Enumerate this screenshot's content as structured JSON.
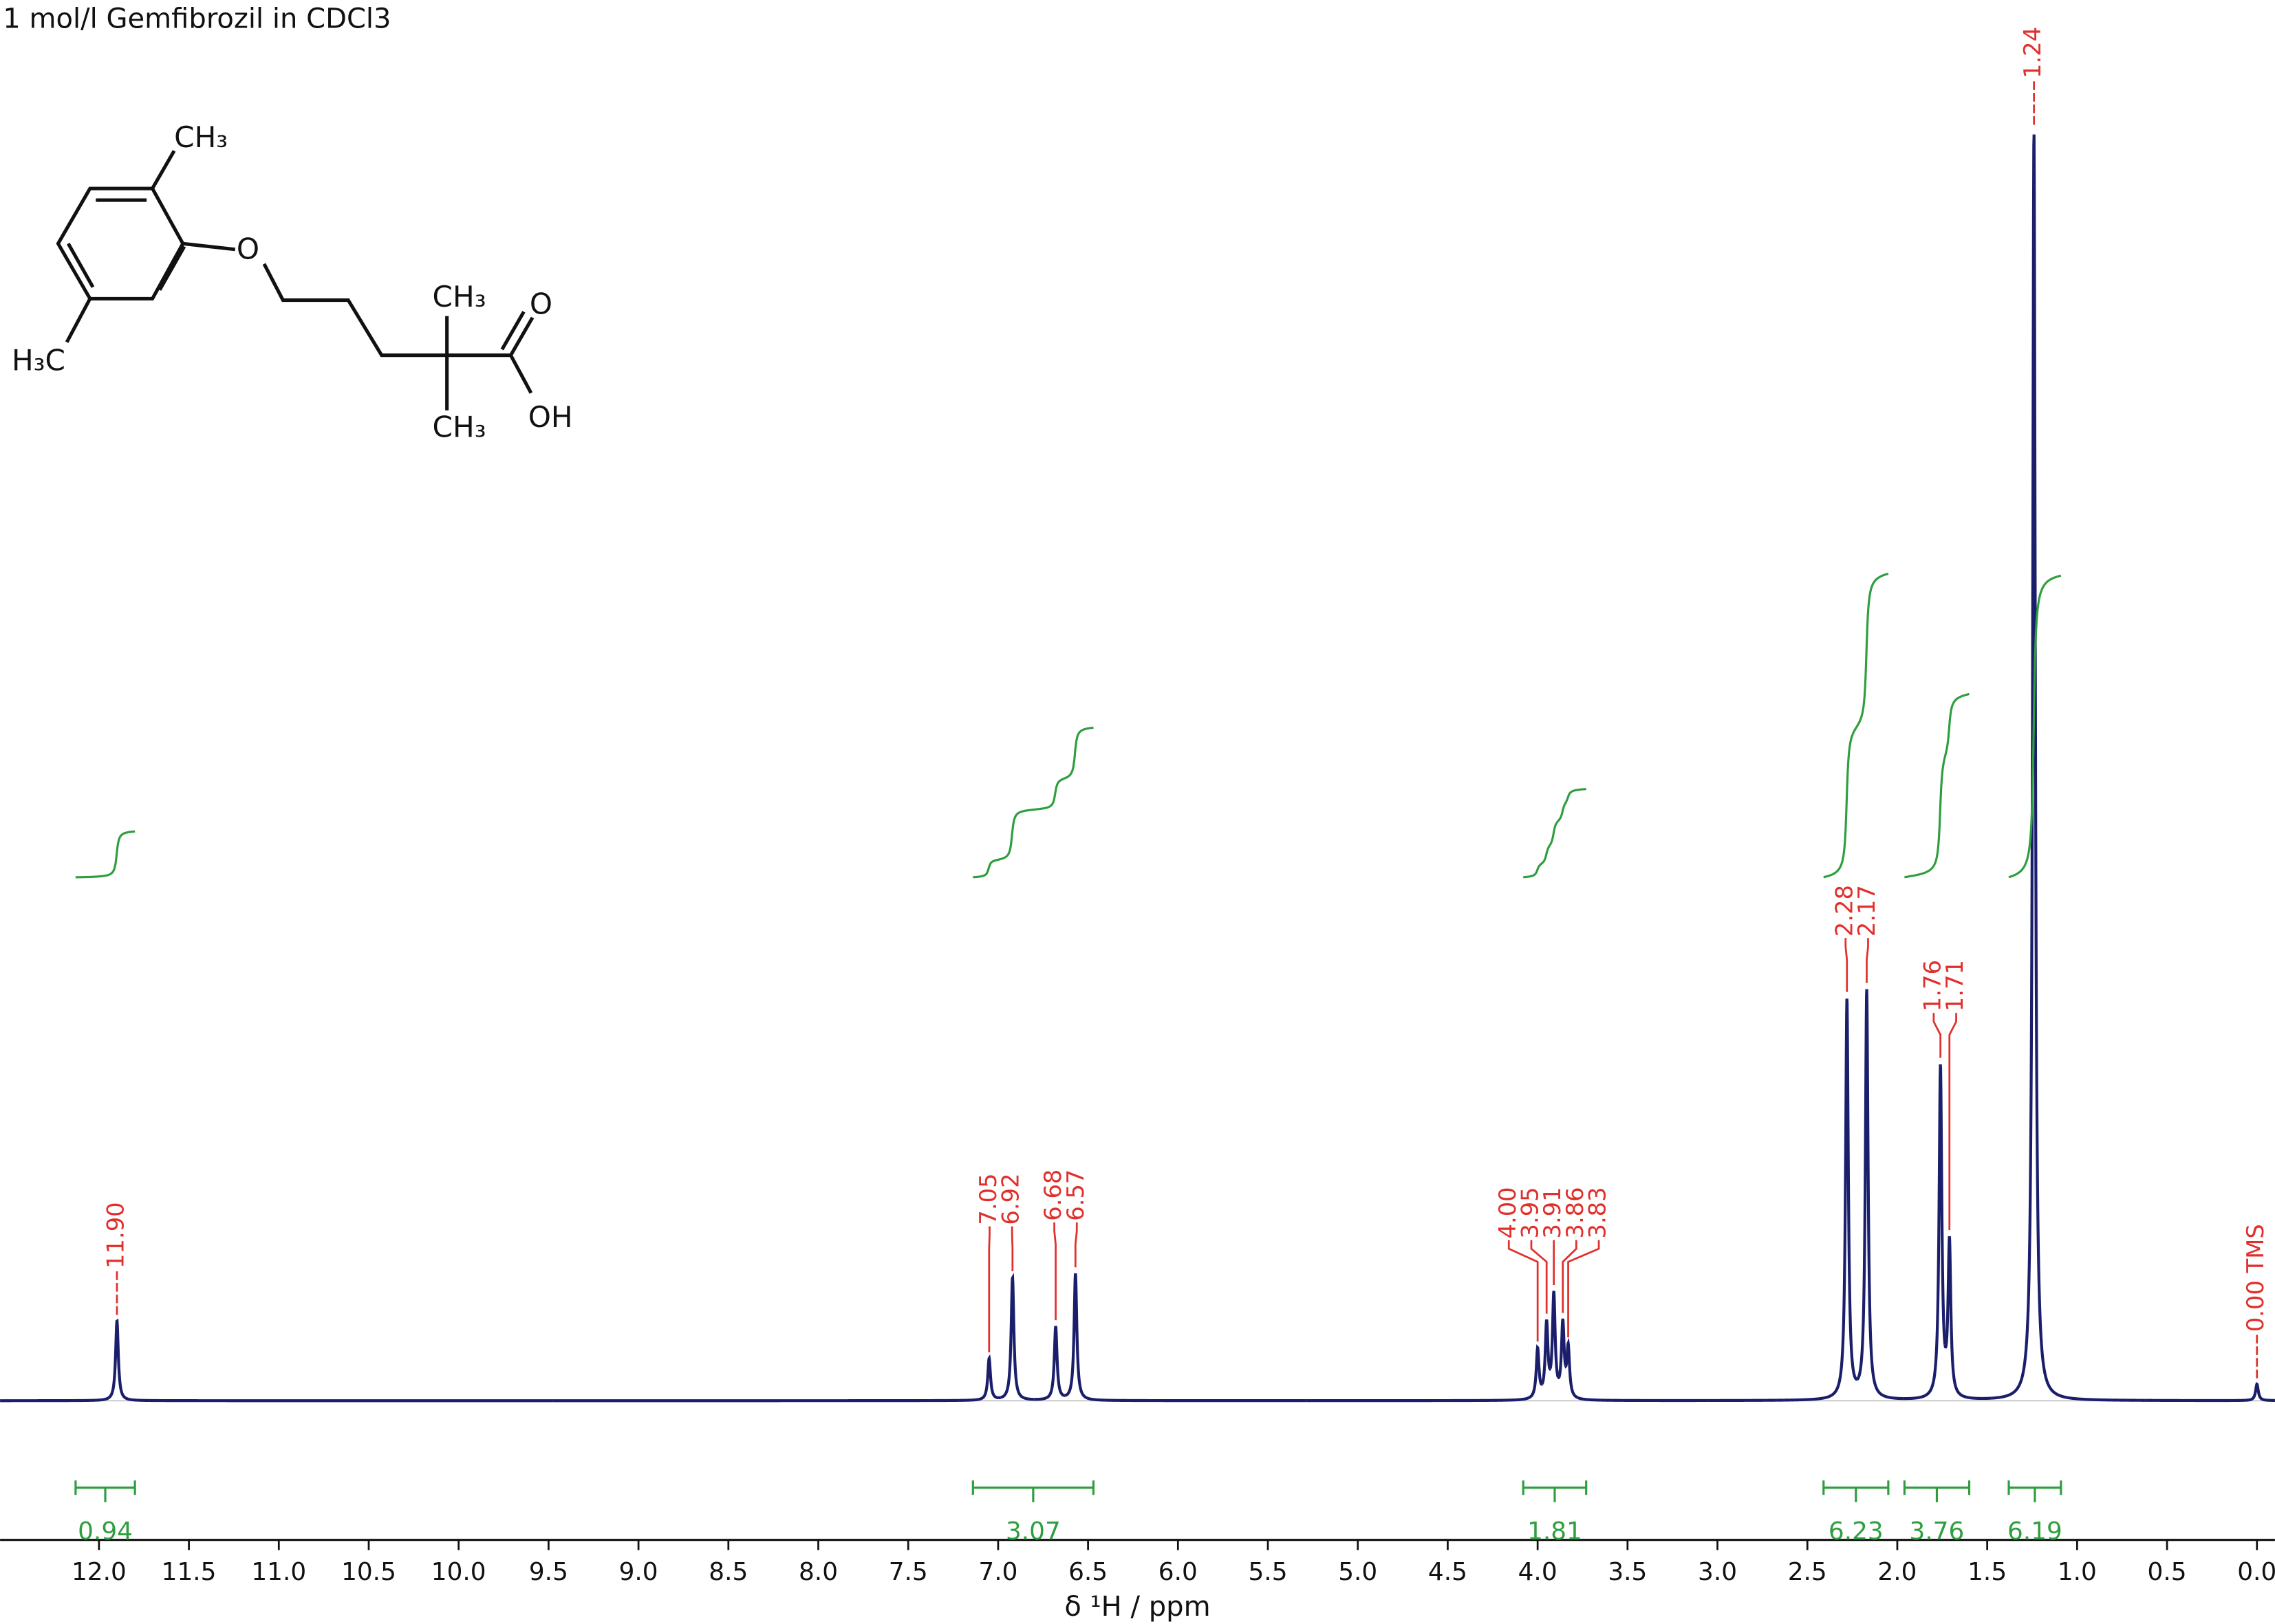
{
  "chart_data": {
    "type": "nmr",
    "title": "1 mol/l Gemfibrozil in CDCl3",
    "x_label": "δ ¹H / ppm",
    "xlim": [
      12.55,
      -0.1
    ],
    "xticks": [
      {
        "value": 12,
        "label": "12.0"
      },
      11.5,
      {
        "value": 11,
        "label": "11.0"
      },
      10.5,
      {
        "value": 10,
        "label": "10.0"
      },
      9.5,
      {
        "value": 9,
        "label": "9.0"
      },
      8.5,
      {
        "value": 8,
        "label": "8.0"
      },
      7.5,
      {
        "value": 7,
        "label": "7.0"
      },
      6.5,
      {
        "value": 6,
        "label": "6.0"
      },
      5.5,
      {
        "value": 5,
        "label": "5.0"
      },
      4.5,
      {
        "value": 4,
        "label": "4.0"
      },
      3.5,
      {
        "value": 3,
        "label": "3.0"
      },
      2.5,
      {
        "value": 2,
        "label": "2.0"
      },
      1.5,
      {
        "value": 1,
        "label": "1.0"
      },
      0.5,
      {
        "value": 0,
        "label": "0.0"
      }
    ],
    "ylim": [
      0,
      110.3
    ],
    "color": "#1b1f6b",
    "label_color": "#e0302c",
    "integral_color": "#2e9e3e",
    "peaks": [
      {
        "ppm": 11.9,
        "label": "11.90",
        "height": 6.3
      },
      {
        "ppm": 7.05,
        "label": "7.05",
        "height": 3.3
      },
      {
        "ppm": 6.92,
        "label": "6.92",
        "height": 9.7
      },
      {
        "ppm": 6.68,
        "label": "6.68",
        "height": 5.8
      },
      {
        "ppm": 6.57,
        "label": "6.57",
        "height": 10.0
      },
      {
        "ppm": 4.0,
        "label": "4.00",
        "height": 3.9
      },
      {
        "ppm": 3.95,
        "label": "3.95",
        "height": 5.8
      },
      {
        "ppm": 3.91,
        "label": "3.91",
        "height": 8.1
      },
      {
        "ppm": 3.86,
        "label": "3.86",
        "height": 5.8
      },
      {
        "ppm": 3.83,
        "label": "3.83",
        "height": 3.9
      },
      {
        "ppm": 2.28,
        "label": "2.28",
        "height": 31.5
      },
      {
        "ppm": 2.17,
        "label": "2.17",
        "height": 32.2
      },
      {
        "ppm": 1.76,
        "label": "1.76",
        "height": 26.1
      },
      {
        "ppm": 1.71,
        "label": "1.71",
        "height": 12.1
      },
      {
        "ppm": 1.24,
        "label": "1.24",
        "height": 100
      },
      {
        "ppm": 0,
        "label": "0.00 TMS",
        "height": 1.3
      }
    ],
    "integrals": [
      {
        "from": 12.13,
        "to": 11.8,
        "value": 0.94
      },
      {
        "from": 7.14,
        "to": 6.47,
        "value": 3.07
      },
      {
        "from": 4.08,
        "to": 3.73,
        "value": 1.81
      },
      {
        "from": 2.41,
        "to": 2.05,
        "value": 6.23
      },
      {
        "from": 1.96,
        "to": 1.6,
        "value": 3.76
      },
      {
        "from": 1.38,
        "to": 1.09,
        "value": 6.19
      }
    ]
  },
  "molecule": {
    "labels": [
      "CH₃",
      "O",
      "CH₃",
      "O",
      "OH",
      "CH₃",
      "H₃C"
    ]
  }
}
